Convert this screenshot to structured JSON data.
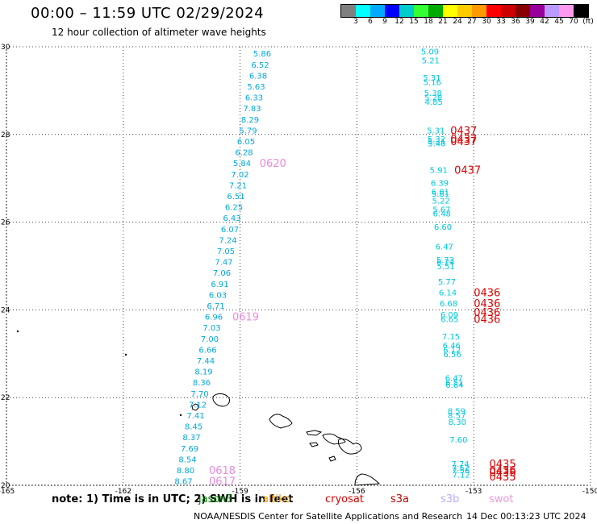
{
  "header": {
    "title": "00:00 – 11:59 UTC 02/29/2024",
    "subtitle": "12 hour collection of altimeter wave heights"
  },
  "color_scale": {
    "colors": [
      "#808080",
      "#00ffff",
      "#00aaff",
      "#0000ff",
      "#00cccc",
      "#33ff33",
      "#00aa00",
      "#ffff00",
      "#ffcc00",
      "#ff9900",
      "#ff0000",
      "#cc0000",
      "#880000",
      "#990099",
      "#bb99ff",
      "#ff99ee",
      "#000000"
    ],
    "labels": [
      "3",
      "6",
      "9",
      "12",
      "15",
      "18",
      "21",
      "24",
      "27",
      "30",
      "33",
      "36",
      "39",
      "42",
      "45",
      "70",
      "(ft)"
    ]
  },
  "map": {
    "lon_ticks": [
      "-165",
      "-162",
      "-159",
      "-156",
      "-153",
      "-150"
    ],
    "lat_ticks": [
      "30",
      "28",
      "26",
      "24",
      "22",
      "20"
    ],
    "track_west": {
      "color": "#00a8e0",
      "points": [
        {
          "lat": 29.85,
          "v": "5.86"
        },
        {
          "lat": 29.6,
          "v": "6.52"
        },
        {
          "lat": 29.35,
          "v": "6.38"
        },
        {
          "lat": 29.1,
          "v": "5.63"
        },
        {
          "lat": 28.85,
          "v": "6.33"
        },
        {
          "lat": 28.6,
          "v": "7.83"
        },
        {
          "lat": 28.35,
          "v": "8.29"
        },
        {
          "lat": 28.1,
          "v": "5.79"
        },
        {
          "lat": 27.85,
          "v": "6.05"
        },
        {
          "lat": 27.6,
          "v": "6.28"
        },
        {
          "lat": 27.35,
          "v": "5.84"
        },
        {
          "lat": 27.1,
          "v": "7.02"
        },
        {
          "lat": 26.85,
          "v": "7.21"
        },
        {
          "lat": 26.6,
          "v": "6.51"
        },
        {
          "lat": 26.35,
          "v": "6.25"
        },
        {
          "lat": 26.1,
          "v": "6.43"
        },
        {
          "lat": 25.85,
          "v": "6.07"
        },
        {
          "lat": 25.6,
          "v": "7.24"
        },
        {
          "lat": 25.35,
          "v": "7.05"
        },
        {
          "lat": 25.1,
          "v": "7.47"
        },
        {
          "lat": 24.85,
          "v": "7.06"
        },
        {
          "lat": 24.6,
          "v": "6.91"
        },
        {
          "lat": 24.35,
          "v": "6.03"
        },
        {
          "lat": 24.1,
          "v": "6.71"
        },
        {
          "lat": 23.85,
          "v": "6.96"
        },
        {
          "lat": 23.6,
          "v": "7.03"
        },
        {
          "lat": 23.35,
          "v": "7.00"
        },
        {
          "lat": 23.1,
          "v": "6.66"
        },
        {
          "lat": 22.85,
          "v": "7.44"
        },
        {
          "lat": 22.6,
          "v": "8.19"
        },
        {
          "lat": 22.35,
          "v": "8.36"
        },
        {
          "lat": 22.1,
          "v": "7.70"
        },
        {
          "lat": 21.85,
          "v": "7.12"
        },
        {
          "lat": 21.6,
          "v": "7.41"
        },
        {
          "lat": 21.35,
          "v": "8.45"
        },
        {
          "lat": 21.1,
          "v": "8.37"
        },
        {
          "lat": 20.85,
          "v": "7.69"
        },
        {
          "lat": 20.6,
          "v": "8.54"
        },
        {
          "lat": 20.35,
          "v": "8.80"
        },
        {
          "lat": 20.1,
          "v": "8.67"
        }
      ]
    },
    "track_east": {
      "color": "#00c8e0",
      "points": [
        {
          "lat": 29.9,
          "v": "5.09"
        },
        {
          "lat": 29.7,
          "v": "5.21"
        },
        {
          "lat": 29.3,
          "v": "5.31"
        },
        {
          "lat": 29.2,
          "v": "5.16"
        },
        {
          "lat": 28.95,
          "v": "5.38"
        },
        {
          "lat": 28.85,
          "v": "5.28"
        },
        {
          "lat": 28.75,
          "v": "4.85"
        },
        {
          "lat": 28.1,
          "v": "5.31"
        },
        {
          "lat": 27.9,
          "v": "5.32"
        },
        {
          "lat": 27.85,
          "v": "5.31"
        },
        {
          "lat": 27.8,
          "v": "5.40"
        },
        {
          "lat": 27.2,
          "v": "5.91"
        },
        {
          "lat": 26.9,
          "v": "6.39"
        },
        {
          "lat": 26.7,
          "v": "6.01"
        },
        {
          "lat": 26.65,
          "v": "5.81"
        },
        {
          "lat": 26.5,
          "v": "5.22"
        },
        {
          "lat": 26.3,
          "v": "5.67"
        },
        {
          "lat": 26.2,
          "v": "6.48"
        },
        {
          "lat": 25.9,
          "v": "6.60"
        },
        {
          "lat": 25.45,
          "v": "6.47"
        },
        {
          "lat": 25.15,
          "v": "5.73"
        },
        {
          "lat": 25.1,
          "v": "6.24"
        },
        {
          "lat": 25.0,
          "v": "5.51"
        },
        {
          "lat": 24.65,
          "v": "5.77"
        },
        {
          "lat": 24.4,
          "v": "6.14"
        },
        {
          "lat": 24.15,
          "v": "6.68"
        },
        {
          "lat": 23.9,
          "v": "6.09"
        },
        {
          "lat": 23.8,
          "v": "6.65"
        },
        {
          "lat": 23.4,
          "v": "7.15"
        },
        {
          "lat": 23.2,
          "v": "6.46"
        },
        {
          "lat": 23.1,
          "v": "6.12"
        },
        {
          "lat": 23.0,
          "v": "6.56"
        },
        {
          "lat": 22.45,
          "v": "6.47"
        },
        {
          "lat": 22.35,
          "v": "6.51"
        },
        {
          "lat": 22.3,
          "v": "6.64"
        },
        {
          "lat": 21.7,
          "v": "8.59"
        },
        {
          "lat": 21.6,
          "v": "8.57"
        },
        {
          "lat": 21.45,
          "v": "8.30"
        },
        {
          "lat": 21.05,
          "v": "7.60"
        },
        {
          "lat": 20.5,
          "v": "7.74"
        },
        {
          "lat": 20.4,
          "v": "7.52"
        },
        {
          "lat": 20.35,
          "v": "7.56"
        },
        {
          "lat": 20.25,
          "v": "7.12"
        }
      ]
    },
    "pass_labels": [
      {
        "text": "0620",
        "color": "#ee88dd",
        "lon": -158.5,
        "lat": 27.35
      },
      {
        "text": "0619",
        "color": "#ee88dd",
        "lon": -159.2,
        "lat": 23.85
      },
      {
        "text": "0618",
        "color": "#ee88dd",
        "lon": -159.8,
        "lat": 20.35
      },
      {
        "text": "0617",
        "color": "#ee88dd",
        "lon": -159.8,
        "lat": 20.1
      },
      {
        "text": "0437",
        "color": "#dd0000",
        "lon": -153.6,
        "lat": 28.1
      },
      {
        "text": "0437",
        "color": "#dd0000",
        "lon": -153.6,
        "lat": 27.9
      },
      {
        "text": "0437",
        "color": "#dd0000",
        "lon": -153.6,
        "lat": 27.85
      },
      {
        "text": "0437",
        "color": "#dd0000",
        "lon": -153.5,
        "lat": 27.2
      },
      {
        "text": "0436",
        "color": "#dd0000",
        "lon": -153.0,
        "lat": 24.4
      },
      {
        "text": "0436",
        "color": "#dd0000",
        "lon": -153.0,
        "lat": 24.15
      },
      {
        "text": "0436",
        "color": "#dd0000",
        "lon": -153.0,
        "lat": 23.95
      },
      {
        "text": "0436",
        "color": "#dd0000",
        "lon": -153.0,
        "lat": 23.8
      },
      {
        "text": "0435",
        "color": "#dd0000",
        "lon": -152.6,
        "lat": 20.5
      },
      {
        "text": "0436",
        "color": "#dd0000",
        "lon": -152.6,
        "lat": 20.35
      },
      {
        "text": "0436",
        "color": "#dd0000",
        "lon": -152.6,
        "lat": 20.3
      },
      {
        "text": "0435",
        "color": "#dd0000",
        "lon": -152.6,
        "lat": 20.2
      }
    ]
  },
  "footer": {
    "note": "note: 1) Time is in UTC; 2) SWH is in feet",
    "missions": [
      {
        "name": "jason3",
        "color": "#008800"
      },
      {
        "name": "altiko",
        "color": "#ee9900"
      },
      {
        "name": "cryosat",
        "color": "#dd0000"
      },
      {
        "name": "s3a",
        "color": "#bb0000"
      },
      {
        "name": "s3b",
        "color": "#bbaaff"
      },
      {
        "name": "swot",
        "color": "#ee99dd"
      }
    ],
    "credit": "NOAA/NESDIS Center for Satellite Applications and Research",
    "timestamp": "14 Dec 00:13:23 UTC 2024"
  }
}
